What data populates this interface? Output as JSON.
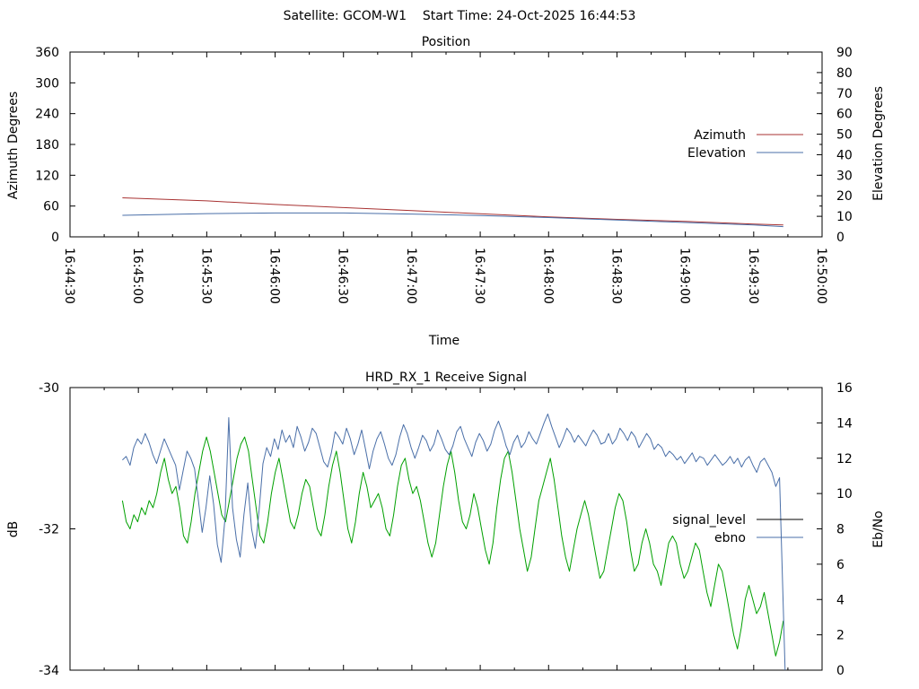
{
  "header": {
    "text": "Satellite: GCOM-W1    Start Time: 24-Oct-2025 16:44:53"
  },
  "colors": {
    "azimuth": "#a83232",
    "elevation": "#4a6fa8",
    "signal_level": "#00a000",
    "ebno": "#4a6fa8",
    "legend_signal_level": "#000000"
  },
  "chart_data": [
    {
      "type": "line",
      "title": "Position",
      "xlabel": "Time",
      "ylabel": "Azimuth Degrees",
      "y2label": "Elevation Degrees",
      "ylim": [
        0,
        360
      ],
      "y2lim": [
        0,
        90
      ],
      "xlim": [
        "16:44:30",
        "16:50:00"
      ],
      "yticks": [
        "0",
        "60",
        "120",
        "180",
        "240",
        "300",
        "360"
      ],
      "y2ticks": [
        "0",
        "10",
        "20",
        "30",
        "40",
        "50",
        "60",
        "70",
        "80",
        "90"
      ],
      "xticks": [
        "16:44:30",
        "16:45:00",
        "16:45:30",
        "16:46:00",
        "16:46:30",
        "16:47:00",
        "16:47:30",
        "16:48:00",
        "16:48:30",
        "16:49:00",
        "16:49:30",
        "16:50:00"
      ],
      "legend_position": "right",
      "series": [
        {
          "name": "Azimuth",
          "axis": "left",
          "x": [
            "16:44:53",
            "16:45:30",
            "16:46:00",
            "16:46:30",
            "16:47:00",
            "16:47:30",
            "16:48:00",
            "16:48:30",
            "16:49:00",
            "16:49:30",
            "16:49:43"
          ],
          "values": [
            76,
            70,
            63,
            57,
            51,
            45,
            39,
            34,
            30,
            25,
            23
          ]
        },
        {
          "name": "Elevation",
          "axis": "right",
          "x": [
            "16:44:53",
            "16:45:30",
            "16:46:00",
            "16:46:30",
            "16:47:00",
            "16:47:30",
            "16:48:00",
            "16:48:30",
            "16:49:00",
            "16:49:30",
            "16:49:43"
          ],
          "values": [
            10.5,
            11.3,
            11.6,
            11.6,
            11.1,
            10.4,
            9.4,
            8.2,
            7.0,
            5.8,
            5.0
          ]
        }
      ]
    },
    {
      "type": "line",
      "title": "HRD_RX_1 Receive Signal",
      "ylabel": "dB",
      "y2label": "Eb/No",
      "ylim": [
        -34,
        -30
      ],
      "y2lim": [
        0,
        16
      ],
      "yticks": [
        "-34",
        "-32",
        "-30"
      ],
      "y2ticks": [
        "0",
        "2",
        "4",
        "6",
        "8",
        "10",
        "12",
        "14",
        "16"
      ],
      "legend_position": "right",
      "series": [
        {
          "name": "signal_level",
          "axis": "left",
          "values": [
            -31.6,
            -31.9,
            -32.0,
            -31.8,
            -31.9,
            -31.7,
            -31.8,
            -31.6,
            -31.7,
            -31.5,
            -31.2,
            -31.0,
            -31.3,
            -31.5,
            -31.4,
            -31.7,
            -32.1,
            -32.2,
            -31.9,
            -31.5,
            -31.2,
            -30.9,
            -30.7,
            -30.9,
            -31.2,
            -31.5,
            -31.8,
            -31.9,
            -31.6,
            -31.3,
            -31.0,
            -30.8,
            -30.7,
            -30.9,
            -31.3,
            -31.7,
            -32.1,
            -32.2,
            -31.9,
            -31.5,
            -31.2,
            -31.0,
            -31.3,
            -31.6,
            -31.9,
            -32.0,
            -31.8,
            -31.5,
            -31.3,
            -31.4,
            -31.7,
            -32.0,
            -32.1,
            -31.8,
            -31.4,
            -31.1,
            -30.9,
            -31.2,
            -31.6,
            -32.0,
            -32.2,
            -31.9,
            -31.5,
            -31.2,
            -31.4,
            -31.7,
            -31.6,
            -31.5,
            -31.7,
            -32.0,
            -32.1,
            -31.8,
            -31.4,
            -31.1,
            -31.0,
            -31.3,
            -31.5,
            -31.4,
            -31.6,
            -31.9,
            -32.2,
            -32.4,
            -32.2,
            -31.8,
            -31.4,
            -31.1,
            -30.9,
            -31.2,
            -31.6,
            -31.9,
            -32.0,
            -31.8,
            -31.5,
            -31.7,
            -32.0,
            -32.3,
            -32.5,
            -32.2,
            -31.7,
            -31.3,
            -31.0,
            -30.9,
            -31.2,
            -31.6,
            -32.0,
            -32.3,
            -32.6,
            -32.4,
            -32.0,
            -31.6,
            -31.4,
            -31.2,
            -31.0,
            -31.3,
            -31.7,
            -32.1,
            -32.4,
            -32.6,
            -32.3,
            -32.0,
            -31.8,
            -31.6,
            -31.8,
            -32.1,
            -32.4,
            -32.7,
            -32.6,
            -32.3,
            -32.0,
            -31.7,
            -31.5,
            -31.6,
            -31.9,
            -32.3,
            -32.6,
            -32.5,
            -32.2,
            -32.0,
            -32.2,
            -32.5,
            -32.6,
            -32.8,
            -32.5,
            -32.2,
            -32.1,
            -32.2,
            -32.5,
            -32.7,
            -32.6,
            -32.4,
            -32.2,
            -32.3,
            -32.6,
            -32.9,
            -33.1,
            -32.8,
            -32.5,
            -32.6,
            -32.9,
            -33.2,
            -33.5,
            -33.7,
            -33.4,
            -33.0,
            -32.8,
            -33.0,
            -33.2,
            -33.1,
            -32.9,
            -33.2,
            -33.5,
            -33.8,
            -33.6,
            -33.3
          ]
        },
        {
          "name": "ebno",
          "axis": "right",
          "values": [
            11.9,
            12.1,
            11.6,
            12.6,
            13.1,
            12.8,
            13.4,
            12.9,
            12.2,
            11.7,
            12.4,
            13.1,
            12.6,
            12.1,
            11.6,
            10.2,
            11.3,
            12.4,
            12.0,
            11.4,
            9.6,
            7.8,
            9.2,
            11.0,
            9.4,
            7.1,
            6.1,
            8.6,
            14.3,
            9.2,
            7.4,
            6.4,
            8.8,
            10.6,
            8.0,
            6.9,
            9.1,
            11.7,
            12.6,
            12.1,
            13.1,
            12.5,
            13.6,
            12.9,
            13.3,
            12.6,
            13.8,
            13.2,
            12.4,
            12.9,
            13.7,
            13.4,
            12.6,
            11.8,
            11.5,
            12.3,
            13.5,
            13.2,
            12.8,
            13.7,
            13.1,
            12.2,
            12.8,
            13.6,
            12.5,
            11.4,
            12.4,
            13.1,
            13.5,
            12.8,
            12.0,
            11.6,
            12.2,
            13.2,
            13.9,
            13.4,
            12.6,
            12.0,
            12.6,
            13.3,
            13.0,
            12.4,
            12.8,
            13.6,
            13.1,
            12.5,
            12.2,
            12.7,
            13.5,
            13.8,
            13.1,
            12.6,
            12.1,
            12.9,
            13.4,
            13.0,
            12.4,
            12.8,
            13.6,
            14.1,
            13.5,
            12.7,
            12.2,
            12.9,
            13.3,
            12.6,
            12.9,
            13.5,
            13.1,
            12.8,
            13.4,
            14.0,
            14.5,
            13.8,
            13.2,
            12.6,
            13.1,
            13.7,
            13.4,
            12.9,
            13.3,
            13.0,
            12.7,
            13.2,
            13.6,
            13.3,
            12.8,
            12.9,
            13.4,
            12.8,
            13.1,
            13.7,
            13.4,
            13.0,
            13.5,
            13.2,
            12.6,
            13.0,
            13.4,
            13.1,
            12.5,
            12.8,
            12.6,
            12.1,
            12.4,
            12.2,
            11.9,
            12.1,
            11.7,
            12.0,
            12.3,
            11.8,
            12.1,
            12.0,
            11.6,
            11.9,
            12.2,
            11.9,
            11.6,
            11.8,
            12.1,
            11.7,
            12.0,
            11.5,
            11.9,
            12.1,
            11.6,
            11.2,
            11.8,
            12.0,
            11.6,
            11.2,
            10.4,
            10.9,
            0.0
          ]
        }
      ]
    }
  ]
}
